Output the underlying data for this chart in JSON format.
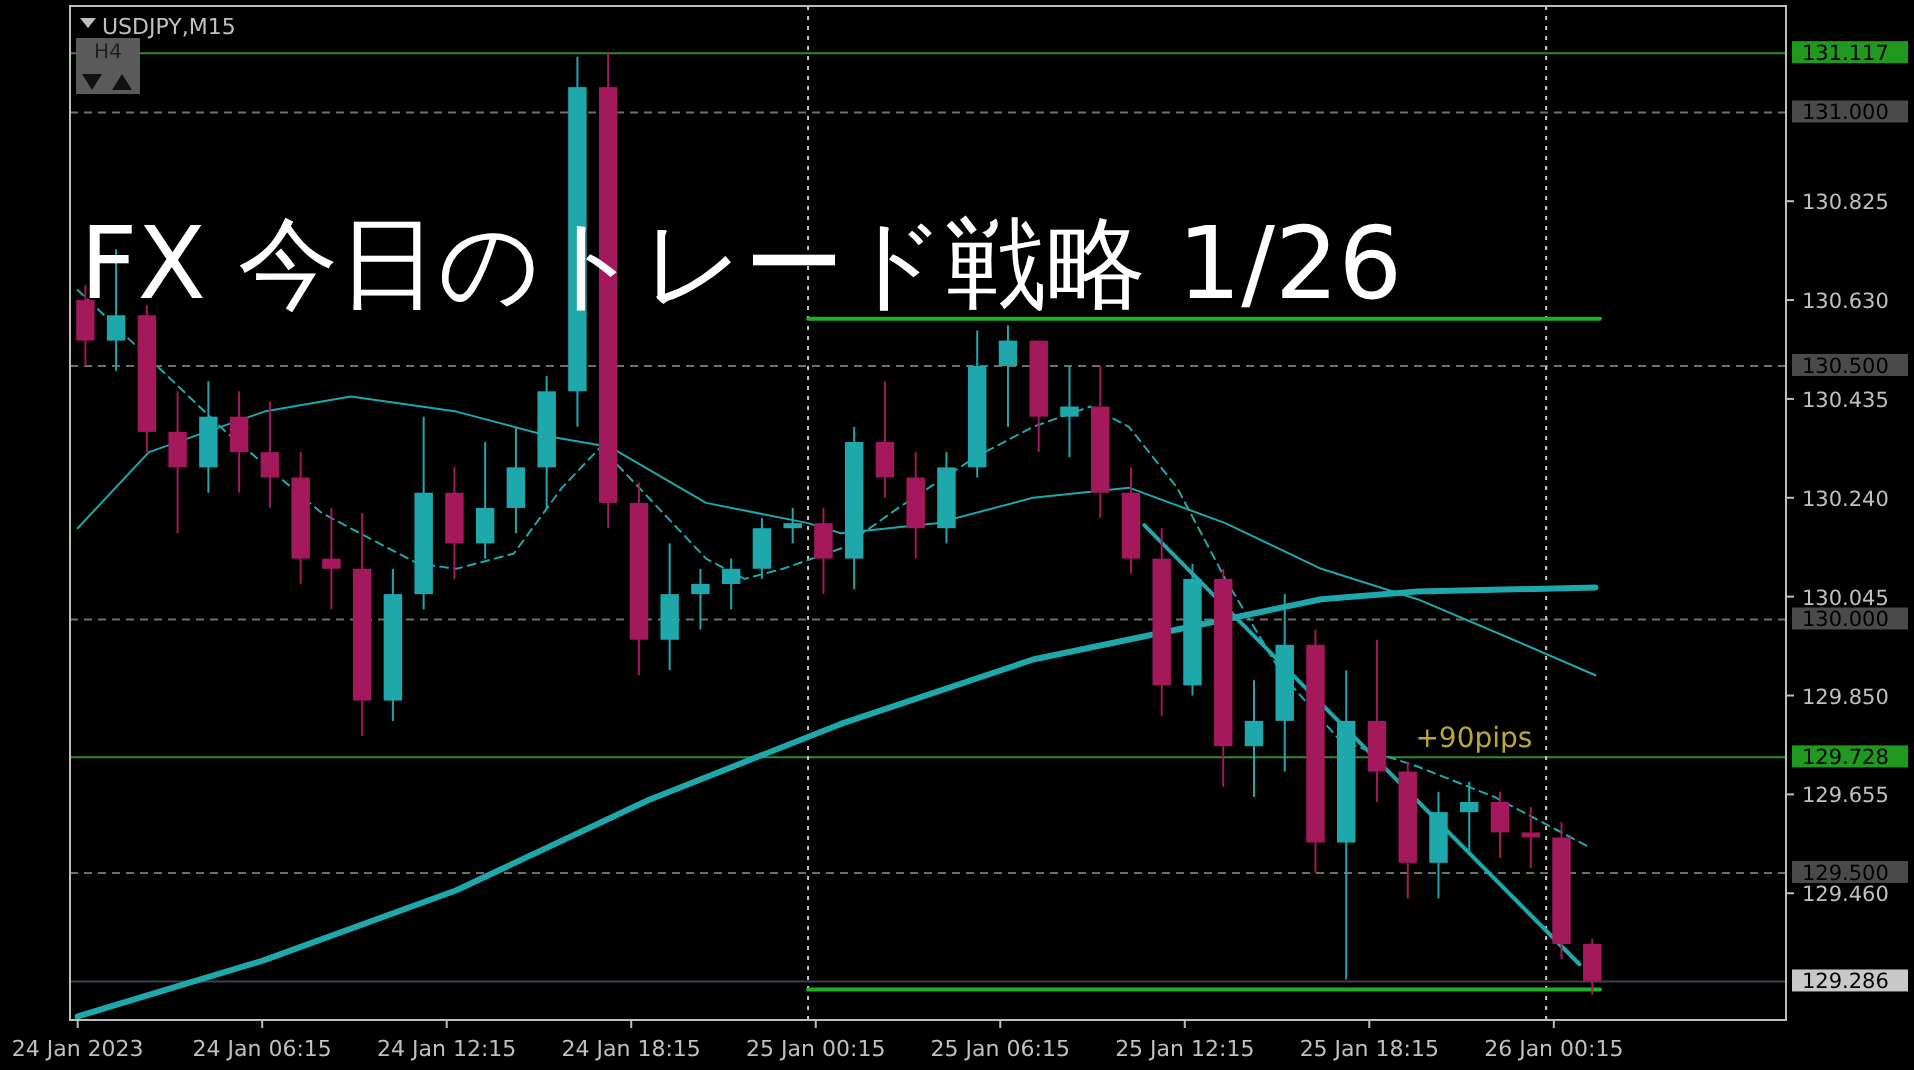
{
  "chart_data": {
    "type": "candlestick",
    "title": "FX 今日のトレード戦略 1/26",
    "subtitle": "USDJPY,M15",
    "annotations": [
      "H4",
      {
        "text": "+90pips",
        "x": "2023-01-25T19:45",
        "y": 129.728
      }
    ],
    "xlim": [
      "2023-01-24T00:00",
      "2023-01-26T07:48"
    ],
    "ylim": [
      129.21,
      131.21
    ],
    "xticks": [
      {
        "value": "2023-01-24T00:15",
        "label": "24 Jan 2023"
      },
      {
        "value": "2023-01-24T06:15",
        "label": "24 Jan 06:15"
      },
      {
        "value": "2023-01-24T12:15",
        "label": "24 Jan 12:15"
      },
      {
        "value": "2023-01-24T18:15",
        "label": "24 Jan 18:15"
      },
      {
        "value": "2023-01-25T00:15",
        "label": "25 Jan 00:15"
      },
      {
        "value": "2023-01-25T06:15",
        "label": "25 Jan 06:15"
      },
      {
        "value": "2023-01-25T12:15",
        "label": "25 Jan 12:15"
      },
      {
        "value": "2023-01-25T18:15",
        "label": "25 Jan 18:15"
      },
      {
        "value": "2023-01-26T00:15",
        "label": "26 Jan 00:15"
      }
    ],
    "yticks": [
      {
        "value": 130.825,
        "label": "130.825"
      },
      {
        "value": 130.63,
        "label": "130.630"
      },
      {
        "value": 130.435,
        "label": "130.435"
      },
      {
        "value": 130.24,
        "label": "130.240"
      },
      {
        "value": 130.045,
        "label": "130.045"
      },
      {
        "value": 129.85,
        "label": "129.850"
      },
      {
        "value": 129.655,
        "label": "129.655"
      },
      {
        "value": 129.46,
        "label": "129.460"
      }
    ],
    "grid": false,
    "ref_lines": [
      {
        "axis": "y",
        "value": 131.117,
        "label": "131.117",
        "color": "#2e8b2e",
        "line_style": "solid"
      },
      {
        "axis": "y",
        "value": 131.0,
        "label": "131.000",
        "color": "#6e6e6e",
        "line_style": "dashed"
      },
      {
        "axis": "y",
        "value": 130.5,
        "label": "130.500",
        "color": "#6e6e6e",
        "line_style": "dashed"
      },
      {
        "axis": "y",
        "value": 130.0,
        "label": "130.000",
        "color": "#6e6e6e",
        "line_style": "dashed"
      },
      {
        "axis": "y",
        "value": 129.728,
        "label": "129.728",
        "color": "#2e8b2e",
        "line_style": "solid"
      },
      {
        "axis": "y",
        "value": 129.5,
        "label": "129.500",
        "color": "#6e6e6e",
        "line_style": "dashed"
      },
      {
        "axis": "y",
        "value": 129.286,
        "label": "129.286",
        "color": "#3a4250",
        "line_style": "solid"
      },
      {
        "axis": "x",
        "value": "2023-01-25T00:00",
        "color": "#c8c8c8",
        "line_style": "dotted"
      },
      {
        "axis": "x",
        "value": "2023-01-26T00:00",
        "color": "#c8c8c8",
        "line_style": "dotted"
      }
    ],
    "series": [
      {
        "type": "line",
        "color": "#1fa8ac",
        "line_style": "solid",
        "x": [
          "2023-01-24T00:15",
          "2023-01-24T06:19",
          "2023-01-24T12:34",
          "2023-01-24T18:49",
          "2023-01-25T01:04",
          "2023-01-25T07:19",
          "2023-01-25T13:34",
          "2023-01-25T16:41",
          "2023-01-25T19:49",
          "2023-01-26T01:36"
        ],
        "values": [
          129.217,
          129.328,
          129.466,
          129.644,
          129.794,
          129.921,
          130.0,
          130.04,
          130.055,
          130.063
        ]
      },
      {
        "type": "line",
        "color": "#1fa8ac",
        "line_style": "solid",
        "x": [
          "2023-01-24T00:15",
          "2023-01-24T02:34",
          "2023-01-24T06:19",
          "2023-01-24T09:08",
          "2023-01-24T12:34",
          "2023-01-24T15:41",
          "2023-01-24T17:34",
          "2023-01-24T20:41",
          "2023-01-25T00:00",
          "2023-01-25T01:04",
          "2023-01-25T04:11",
          "2023-01-25T07:19",
          "2023-01-25T10:26",
          "2023-01-25T13:34",
          "2023-01-25T16:41",
          "2023-01-25T19:49",
          "2023-01-25T22:56",
          "2023-01-26T01:36"
        ],
        "values": [
          130.18,
          130.33,
          130.41,
          130.44,
          130.41,
          130.36,
          130.34,
          130.23,
          130.19,
          130.17,
          130.19,
          130.24,
          130.26,
          130.19,
          130.1,
          130.04,
          129.96,
          129.89
        ]
      },
      {
        "type": "line",
        "color": "#1fa8ac",
        "line_style": "dashed",
        "x": [
          "2023-01-24T00:15",
          "2023-01-24T05:04",
          "2023-01-24T08:11",
          "2023-01-24T09:26",
          "2023-01-24T11:19",
          "2023-01-24T12:34",
          "2023-01-24T14:26",
          "2023-01-24T16:00",
          "2023-01-24T17:15",
          "2023-01-24T18:49",
          "2023-01-24T20:41",
          "2023-01-24T21:56",
          "2023-01-24T23:11",
          "2023-01-25T01:04",
          "2023-01-25T02:56",
          "2023-01-25T05:26",
          "2023-01-25T07:19",
          "2023-01-25T09:11",
          "2023-01-25T10:26",
          "2023-01-25T12:00",
          "2023-01-25T13:34",
          "2023-01-25T15:26",
          "2023-01-25T17:19",
          "2023-01-25T19:49",
          "2023-01-25T22:19",
          "2023-01-26T01:26"
        ],
        "values": [
          130.65,
          130.37,
          130.21,
          130.17,
          130.11,
          130.1,
          130.13,
          130.26,
          130.34,
          130.24,
          130.12,
          130.08,
          130.1,
          130.14,
          130.22,
          130.32,
          130.38,
          130.42,
          130.38,
          130.26,
          130.08,
          129.89,
          129.76,
          129.71,
          129.65,
          129.55
        ]
      },
      {
        "type": "line",
        "color": "#1fa8ac",
        "line_style": "solid",
        "x": [
          "2023-01-25T10:56",
          "2023-01-26T01:05"
        ],
        "values": [
          130.186,
          129.32
        ]
      },
      {
        "type": "line",
        "color": "#22b022",
        "line_style": "solid",
        "x": [
          "2023-01-25T00:00",
          "2023-01-26T01:45"
        ],
        "values": [
          130.593,
          130.593
        ]
      },
      {
        "type": "line",
        "color": "#22b022",
        "line_style": "solid",
        "x": [
          "2023-01-25T00:00",
          "2023-01-26T01:45"
        ],
        "values": [
          129.27,
          129.27
        ]
      },
      {
        "type": "candlestick",
        "x": [
          "2023-01-24T00:30",
          "2023-01-24T01:30",
          "2023-01-24T02:30",
          "2023-01-24T03:30",
          "2023-01-24T04:30",
          "2023-01-24T05:30",
          "2023-01-24T06:30",
          "2023-01-24T07:30",
          "2023-01-24T08:30",
          "2023-01-24T09:30",
          "2023-01-24T10:30",
          "2023-01-24T11:30",
          "2023-01-24T12:30",
          "2023-01-24T13:30",
          "2023-01-24T14:30",
          "2023-01-24T15:30",
          "2023-01-24T16:30",
          "2023-01-24T17:30",
          "2023-01-24T18:30",
          "2023-01-24T19:30",
          "2023-01-24T20:30",
          "2023-01-24T21:30",
          "2023-01-24T22:30",
          "2023-01-24T23:30",
          "2023-01-25T00:30",
          "2023-01-25T01:30",
          "2023-01-25T02:30",
          "2023-01-25T03:30",
          "2023-01-25T04:30",
          "2023-01-25T05:30",
          "2023-01-25T06:30",
          "2023-01-25T07:30",
          "2023-01-25T08:30",
          "2023-01-25T09:30",
          "2023-01-25T10:30",
          "2023-01-25T11:30",
          "2023-01-25T12:30",
          "2023-01-25T13:30",
          "2023-01-25T14:30",
          "2023-01-25T15:30",
          "2023-01-25T16:30",
          "2023-01-25T17:30",
          "2023-01-25T18:30",
          "2023-01-25T19:30",
          "2023-01-25T20:30",
          "2023-01-25T21:30",
          "2023-01-25T22:30",
          "2023-01-25T23:30",
          "2023-01-26T00:30",
          "2023-01-26T01:30"
        ],
        "ohlc": [
          [
            130.63,
            130.66,
            130.5,
            130.55
          ],
          [
            130.55,
            130.73,
            130.49,
            130.6
          ],
          [
            130.6,
            130.62,
            130.33,
            130.37
          ],
          [
            130.37,
            130.45,
            130.17,
            130.3
          ],
          [
            130.3,
            130.47,
            130.25,
            130.4
          ],
          [
            130.4,
            130.45,
            130.25,
            130.33
          ],
          [
            130.33,
            130.43,
            130.22,
            130.28
          ],
          [
            130.28,
            130.33,
            130.07,
            130.12
          ],
          [
            130.12,
            130.22,
            130.02,
            130.1
          ],
          [
            130.1,
            130.21,
            129.77,
            129.84
          ],
          [
            129.84,
            130.1,
            129.8,
            130.05
          ],
          [
            130.05,
            130.4,
            130.02,
            130.25
          ],
          [
            130.25,
            130.3,
            130.08,
            130.15
          ],
          [
            130.15,
            130.35,
            130.12,
            130.22
          ],
          [
            130.22,
            130.38,
            130.17,
            130.3
          ],
          [
            130.3,
            130.48,
            130.22,
            130.45
          ],
          [
            130.45,
            131.11,
            130.38,
            131.05
          ],
          [
            131.05,
            131.12,
            130.18,
            130.23
          ],
          [
            130.23,
            130.27,
            129.89,
            129.96
          ],
          [
            129.96,
            130.15,
            129.9,
            130.05
          ],
          [
            130.05,
            130.1,
            129.98,
            130.07
          ],
          [
            130.07,
            130.12,
            130.02,
            130.1
          ],
          [
            130.1,
            130.2,
            130.08,
            130.18
          ],
          [
            130.18,
            130.22,
            130.15,
            130.19
          ],
          [
            130.19,
            130.22,
            130.05,
            130.12
          ],
          [
            130.12,
            130.38,
            130.06,
            130.35
          ],
          [
            130.35,
            130.47,
            130.24,
            130.28
          ],
          [
            130.28,
            130.33,
            130.12,
            130.18
          ],
          [
            130.18,
            130.33,
            130.15,
            130.3
          ],
          [
            130.3,
            130.57,
            130.28,
            130.5
          ],
          [
            130.5,
            130.58,
            130.38,
            130.55
          ],
          [
            130.55,
            130.55,
            130.33,
            130.4
          ],
          [
            130.4,
            130.5,
            130.32,
            130.42
          ],
          [
            130.42,
            130.5,
            130.2,
            130.25
          ],
          [
            130.25,
            130.3,
            130.09,
            130.12
          ],
          [
            130.12,
            130.18,
            129.81,
            129.87
          ],
          [
            129.87,
            130.11,
            129.85,
            130.08
          ],
          [
            130.08,
            130.1,
            129.67,
            129.75
          ],
          [
            129.75,
            129.88,
            129.65,
            129.8
          ],
          [
            129.8,
            130.05,
            129.7,
            129.95
          ],
          [
            129.95,
            129.98,
            129.5,
            129.56
          ],
          [
            129.56,
            129.9,
            129.29,
            129.8
          ],
          [
            129.8,
            129.96,
            129.64,
            129.7
          ],
          [
            129.7,
            129.72,
            129.45,
            129.52
          ],
          [
            129.52,
            129.66,
            129.45,
            129.62
          ],
          [
            129.62,
            129.68,
            129.54,
            129.64
          ],
          [
            129.64,
            129.66,
            129.53,
            129.58
          ],
          [
            129.58,
            129.63,
            129.51,
            129.57
          ],
          [
            129.57,
            129.6,
            129.33,
            129.36
          ],
          [
            129.36,
            129.37,
            129.26,
            129.286
          ]
        ],
        "colors": [
          "#a3195b",
          "#1fa8ac",
          "#a3195b",
          "#a3195b",
          "#1fa8ac",
          "#a3195b",
          "#a3195b",
          "#a3195b",
          "#a3195b",
          "#a3195b",
          "#1fa8ac",
          "#1fa8ac",
          "#a3195b",
          "#1fa8ac",
          "#1fa8ac",
          "#1fa8ac",
          "#1fa8ac",
          "#a3195b",
          "#a3195b",
          "#1fa8ac",
          "#1fa8ac",
          "#1fa8ac",
          "#1fa8ac",
          "#1fa8ac",
          "#a3195b",
          "#1fa8ac",
          "#a3195b",
          "#a3195b",
          "#1fa8ac",
          "#1fa8ac",
          "#1fa8ac",
          "#a3195b",
          "#1fa8ac",
          "#a3195b",
          "#a3195b",
          "#a3195b",
          "#1fa8ac",
          "#a3195b",
          "#1fa8ac",
          "#1fa8ac",
          "#a3195b",
          "#1fa8ac",
          "#a3195b",
          "#a3195b",
          "#1fa8ac",
          "#1fa8ac",
          "#a3195b",
          "#a3195b",
          "#a3195b",
          "#a3195b"
        ]
      }
    ]
  }
}
